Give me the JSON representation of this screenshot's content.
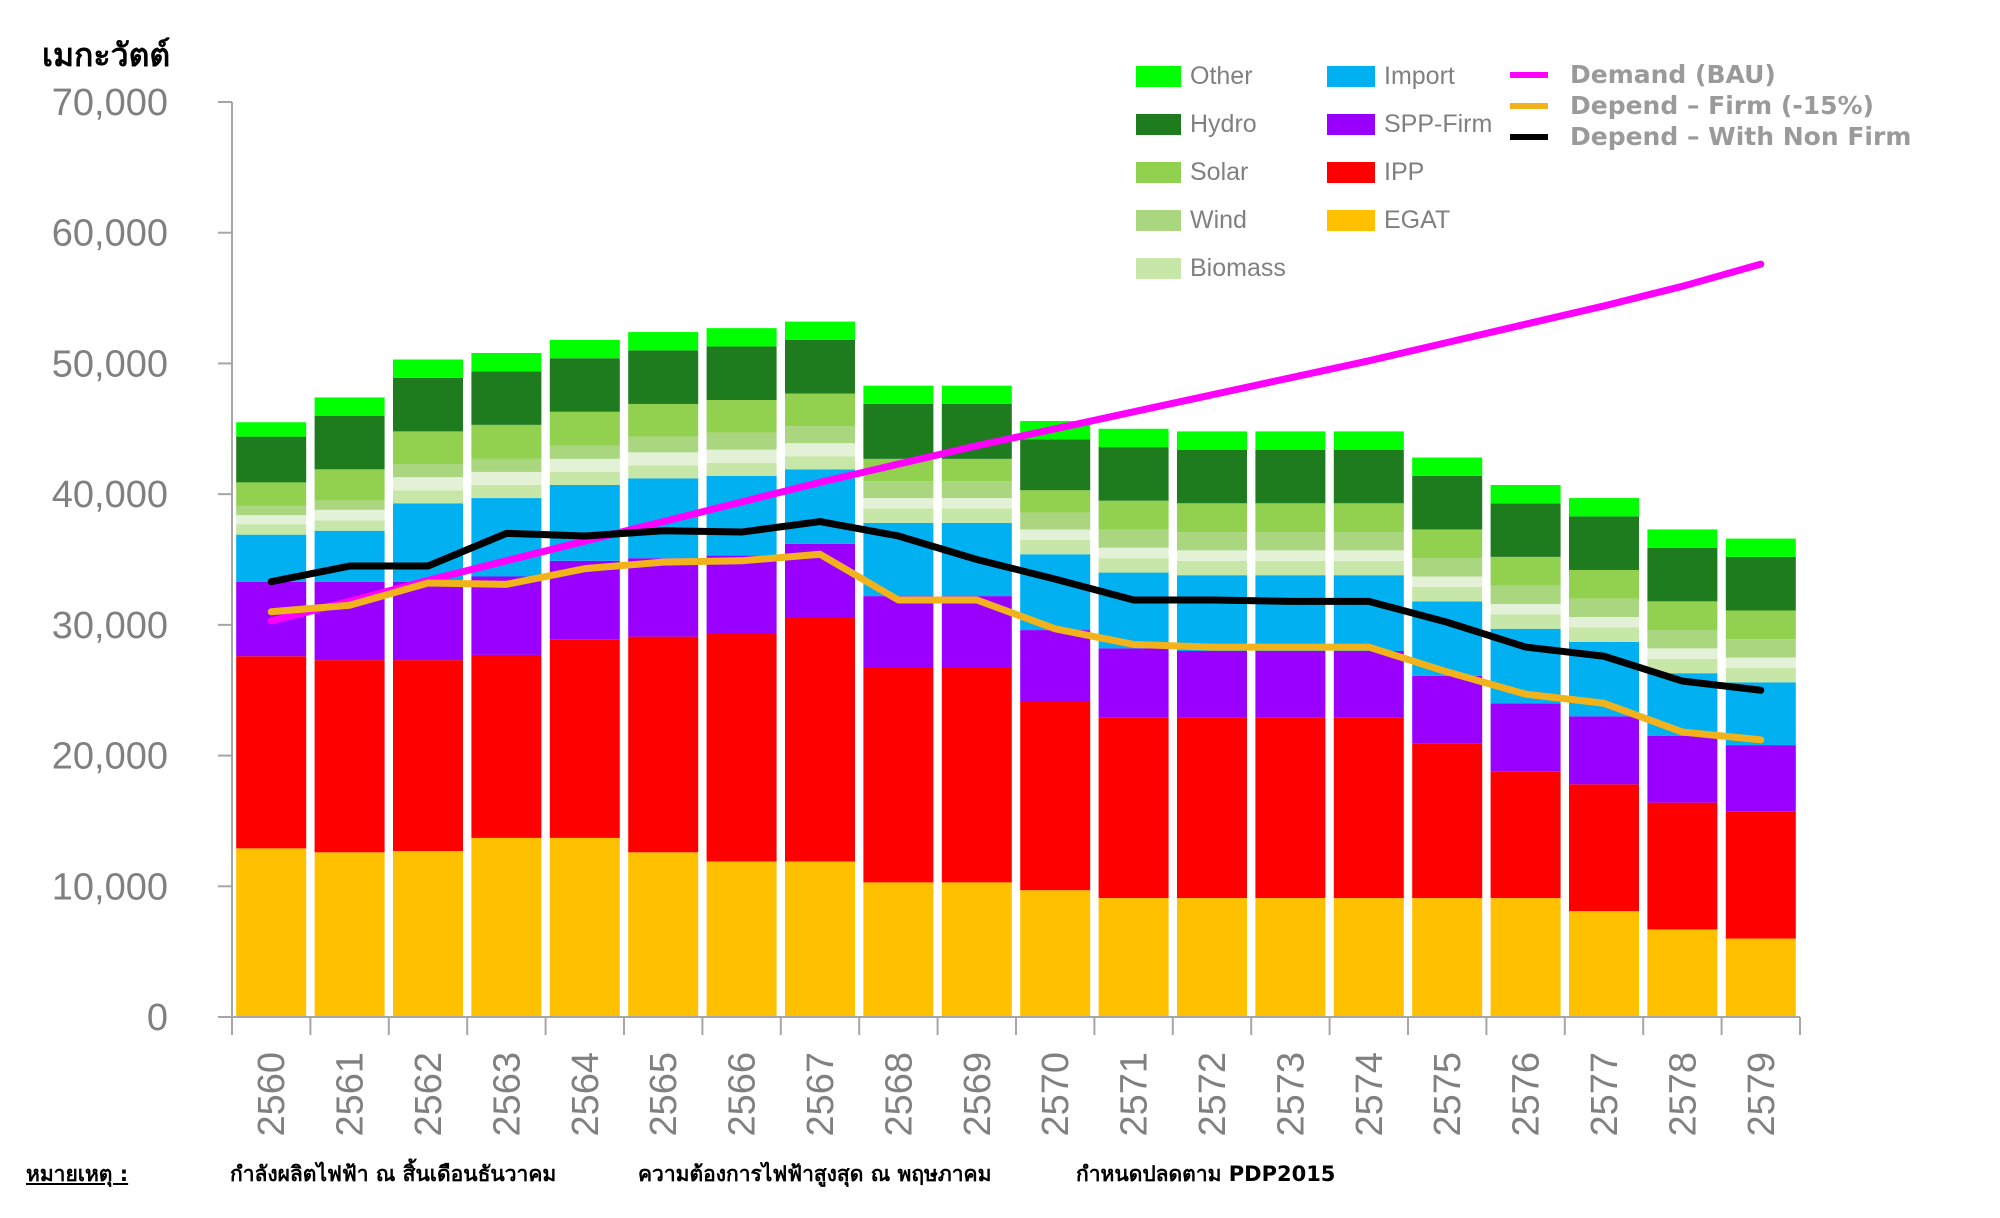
{
  "chart_data": {
    "type": "bar",
    "stacked": true,
    "ylabel": "เมกะวัตต์",
    "xlabel": "",
    "ylim": [
      0,
      70000
    ],
    "yticks": [
      0,
      10000,
      20000,
      30000,
      40000,
      50000,
      60000,
      70000
    ],
    "ytick_labels": [
      "0",
      "10,000",
      "20,000",
      "30,000",
      "40,000",
      "50,000",
      "60,000",
      "70,000"
    ],
    "categories": [
      "2560",
      "2561",
      "2562",
      "2563",
      "2564",
      "2565",
      "2566",
      "2567",
      "2568",
      "2569",
      "2570",
      "2571",
      "2572",
      "2573",
      "2574",
      "2575",
      "2576",
      "2577",
      "2578",
      "2579"
    ],
    "series": [
      {
        "name": "EGAT",
        "color": "#FFC000",
        "values": [
          12900,
          12600,
          12700,
          13700,
          13700,
          12600,
          11900,
          11900,
          10300,
          10300,
          9700,
          9100,
          9100,
          9100,
          9100,
          9100,
          9100,
          8100,
          6700,
          6000
        ]
      },
      {
        "name": "IPP",
        "color": "#FF0000",
        "values": [
          14700,
          14700,
          14600,
          14000,
          15200,
          16500,
          17400,
          18700,
          16400,
          16400,
          14400,
          13800,
          13800,
          13800,
          13800,
          11800,
          9700,
          9700,
          9700,
          9700
        ]
      },
      {
        "name": "SPP-Firm",
        "color": "#9900FF",
        "values": [
          5700,
          6000,
          6000,
          6000,
          6000,
          6000,
          6000,
          5600,
          5500,
          5500,
          5500,
          5300,
          5100,
          5100,
          5100,
          5200,
          5200,
          5200,
          5100,
          5100
        ]
      },
      {
        "name": "Import",
        "color": "#00B0F0",
        "values": [
          3600,
          3900,
          6000,
          6000,
          5800,
          6100,
          6100,
          5700,
          5600,
          5600,
          5800,
          5800,
          5800,
          5800,
          5800,
          5700,
          5700,
          5700,
          4800,
          4800
        ]
      },
      {
        "name": "Biomass",
        "color": "#C6E7A8",
        "values": [
          800,
          800,
          1000,
          1000,
          1000,
          1000,
          1000,
          1000,
          1100,
          1100,
          1100,
          1100,
          1100,
          1100,
          1100,
          1100,
          1100,
          1100,
          1100,
          1100
        ]
      },
      {
        "name": "",
        "color": "#E3F2D6",
        "values": [
          700,
          800,
          1000,
          1000,
          1000,
          1000,
          1000,
          1000,
          800,
          800,
          800,
          800,
          800,
          800,
          800,
          800,
          800,
          800,
          800,
          800
        ]
      },
      {
        "name": "Wind",
        "color": "#A9D67F",
        "values": [
          700,
          700,
          1000,
          1000,
          1000,
          1200,
          1300,
          1300,
          1300,
          1300,
          1300,
          1400,
          1400,
          1400,
          1400,
          1400,
          1400,
          1400,
          1400,
          1400
        ]
      },
      {
        "name": "Solar",
        "color": "#92D050",
        "values": [
          1800,
          2400,
          2500,
          2600,
          2600,
          2500,
          2500,
          2500,
          1700,
          1700,
          1700,
          2200,
          2200,
          2200,
          2200,
          2200,
          2200,
          2200,
          2200,
          2200
        ]
      },
      {
        "name": "Hydro",
        "color": "#1E7B1E",
        "values": [
          3500,
          4100,
          4100,
          4100,
          4100,
          4100,
          4100,
          4100,
          4200,
          4200,
          3900,
          4100,
          4100,
          4100,
          4100,
          4100,
          4100,
          4100,
          4100,
          4100
        ]
      },
      {
        "name": "Other",
        "color": "#00FF00",
        "values": [
          1100,
          1400,
          1400,
          1400,
          1400,
          1400,
          1400,
          1400,
          1400,
          1400,
          1400,
          1400,
          1400,
          1400,
          1400,
          1400,
          1400,
          1400,
          1400,
          1400
        ]
      }
    ],
    "lines": [
      {
        "name": "Demand (BAU)",
        "color": "#FF00FF",
        "values": [
          30300,
          31800,
          33400,
          34900,
          36400,
          37900,
          39400,
          40900,
          42300,
          43700,
          45000,
          46300,
          47600,
          48900,
          50200,
          51600,
          53000,
          54400,
          55900,
          57600
        ]
      },
      {
        "name": "Depend – Firm (-15%)",
        "color": "#F2B21C",
        "values": [
          31000,
          31500,
          33200,
          33100,
          34300,
          34800,
          34900,
          35400,
          31900,
          31900,
          29700,
          28500,
          28300,
          28300,
          28300,
          26400,
          24700,
          24000,
          21800,
          21200
        ]
      },
      {
        "name": "Depend – With Non Firm",
        "color": "#000000",
        "values": [
          33300,
          34500,
          34500,
          37000,
          36800,
          37200,
          37100,
          37900,
          36800,
          35000,
          33500,
          31900,
          31900,
          31800,
          31800,
          30200,
          28300,
          27600,
          25700,
          25000
        ]
      }
    ],
    "legend": {
      "placement": "top-right",
      "col1": [
        "Other",
        "Hydro",
        "Solar",
        "Wind",
        "Biomass"
      ],
      "col2": [
        "Import",
        "SPP-Firm",
        "IPP",
        "EGAT"
      ],
      "col3": [
        "Demand (BAU)",
        "Depend – Firm (-15%)",
        "Depend – With Non Firm"
      ]
    }
  },
  "footnote": {
    "label": "หมายเหตุ :",
    "note1": "กำลังผลิตไฟฟ้า ณ สิ้นเดือนธันวาคม",
    "note2": "ความต้องการไฟฟ้าสูงสุด ณ พฤษภาคม",
    "note3": "กำหนดปลดตาม PDP2015"
  }
}
